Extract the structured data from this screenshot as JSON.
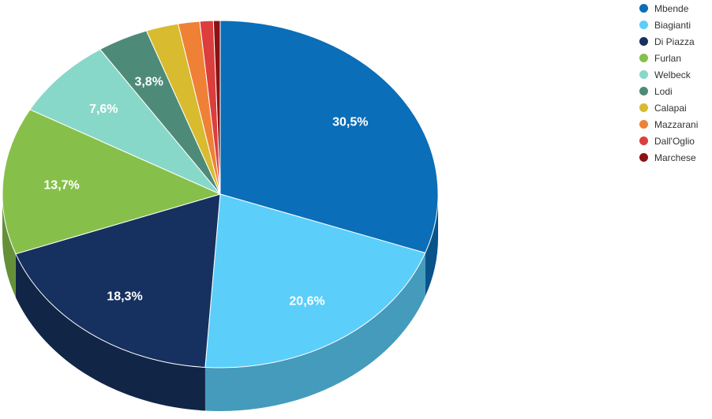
{
  "chart_data": {
    "type": "pie",
    "title": "",
    "labels": [
      "Mbende",
      "Biagianti",
      "Di Piazza",
      "Furlan",
      "Welbeck",
      "Lodi",
      "Calapai",
      "Mazzarani",
      "Dall'Oglio",
      "Marchese"
    ],
    "values": [
      30.5,
      20.6,
      18.3,
      13.7,
      7.6,
      3.8,
      2.4,
      1.6,
      1.0,
      0.5
    ],
    "data_labels": [
      "30,5%",
      "20,6%",
      "18,3%",
      "13,7%",
      "7,6%",
      "3,8%",
      "",
      "",
      "",
      ""
    ],
    "colors": [
      "#0a6eb8",
      "#5bcefa",
      "#16315f",
      "#86c04a",
      "#87d8c8",
      "#4e8a78",
      "#d8bb2e",
      "#ef8137",
      "#dc3d3d",
      "#8e1111"
    ],
    "legend_position": "top-right",
    "three_d": true
  }
}
